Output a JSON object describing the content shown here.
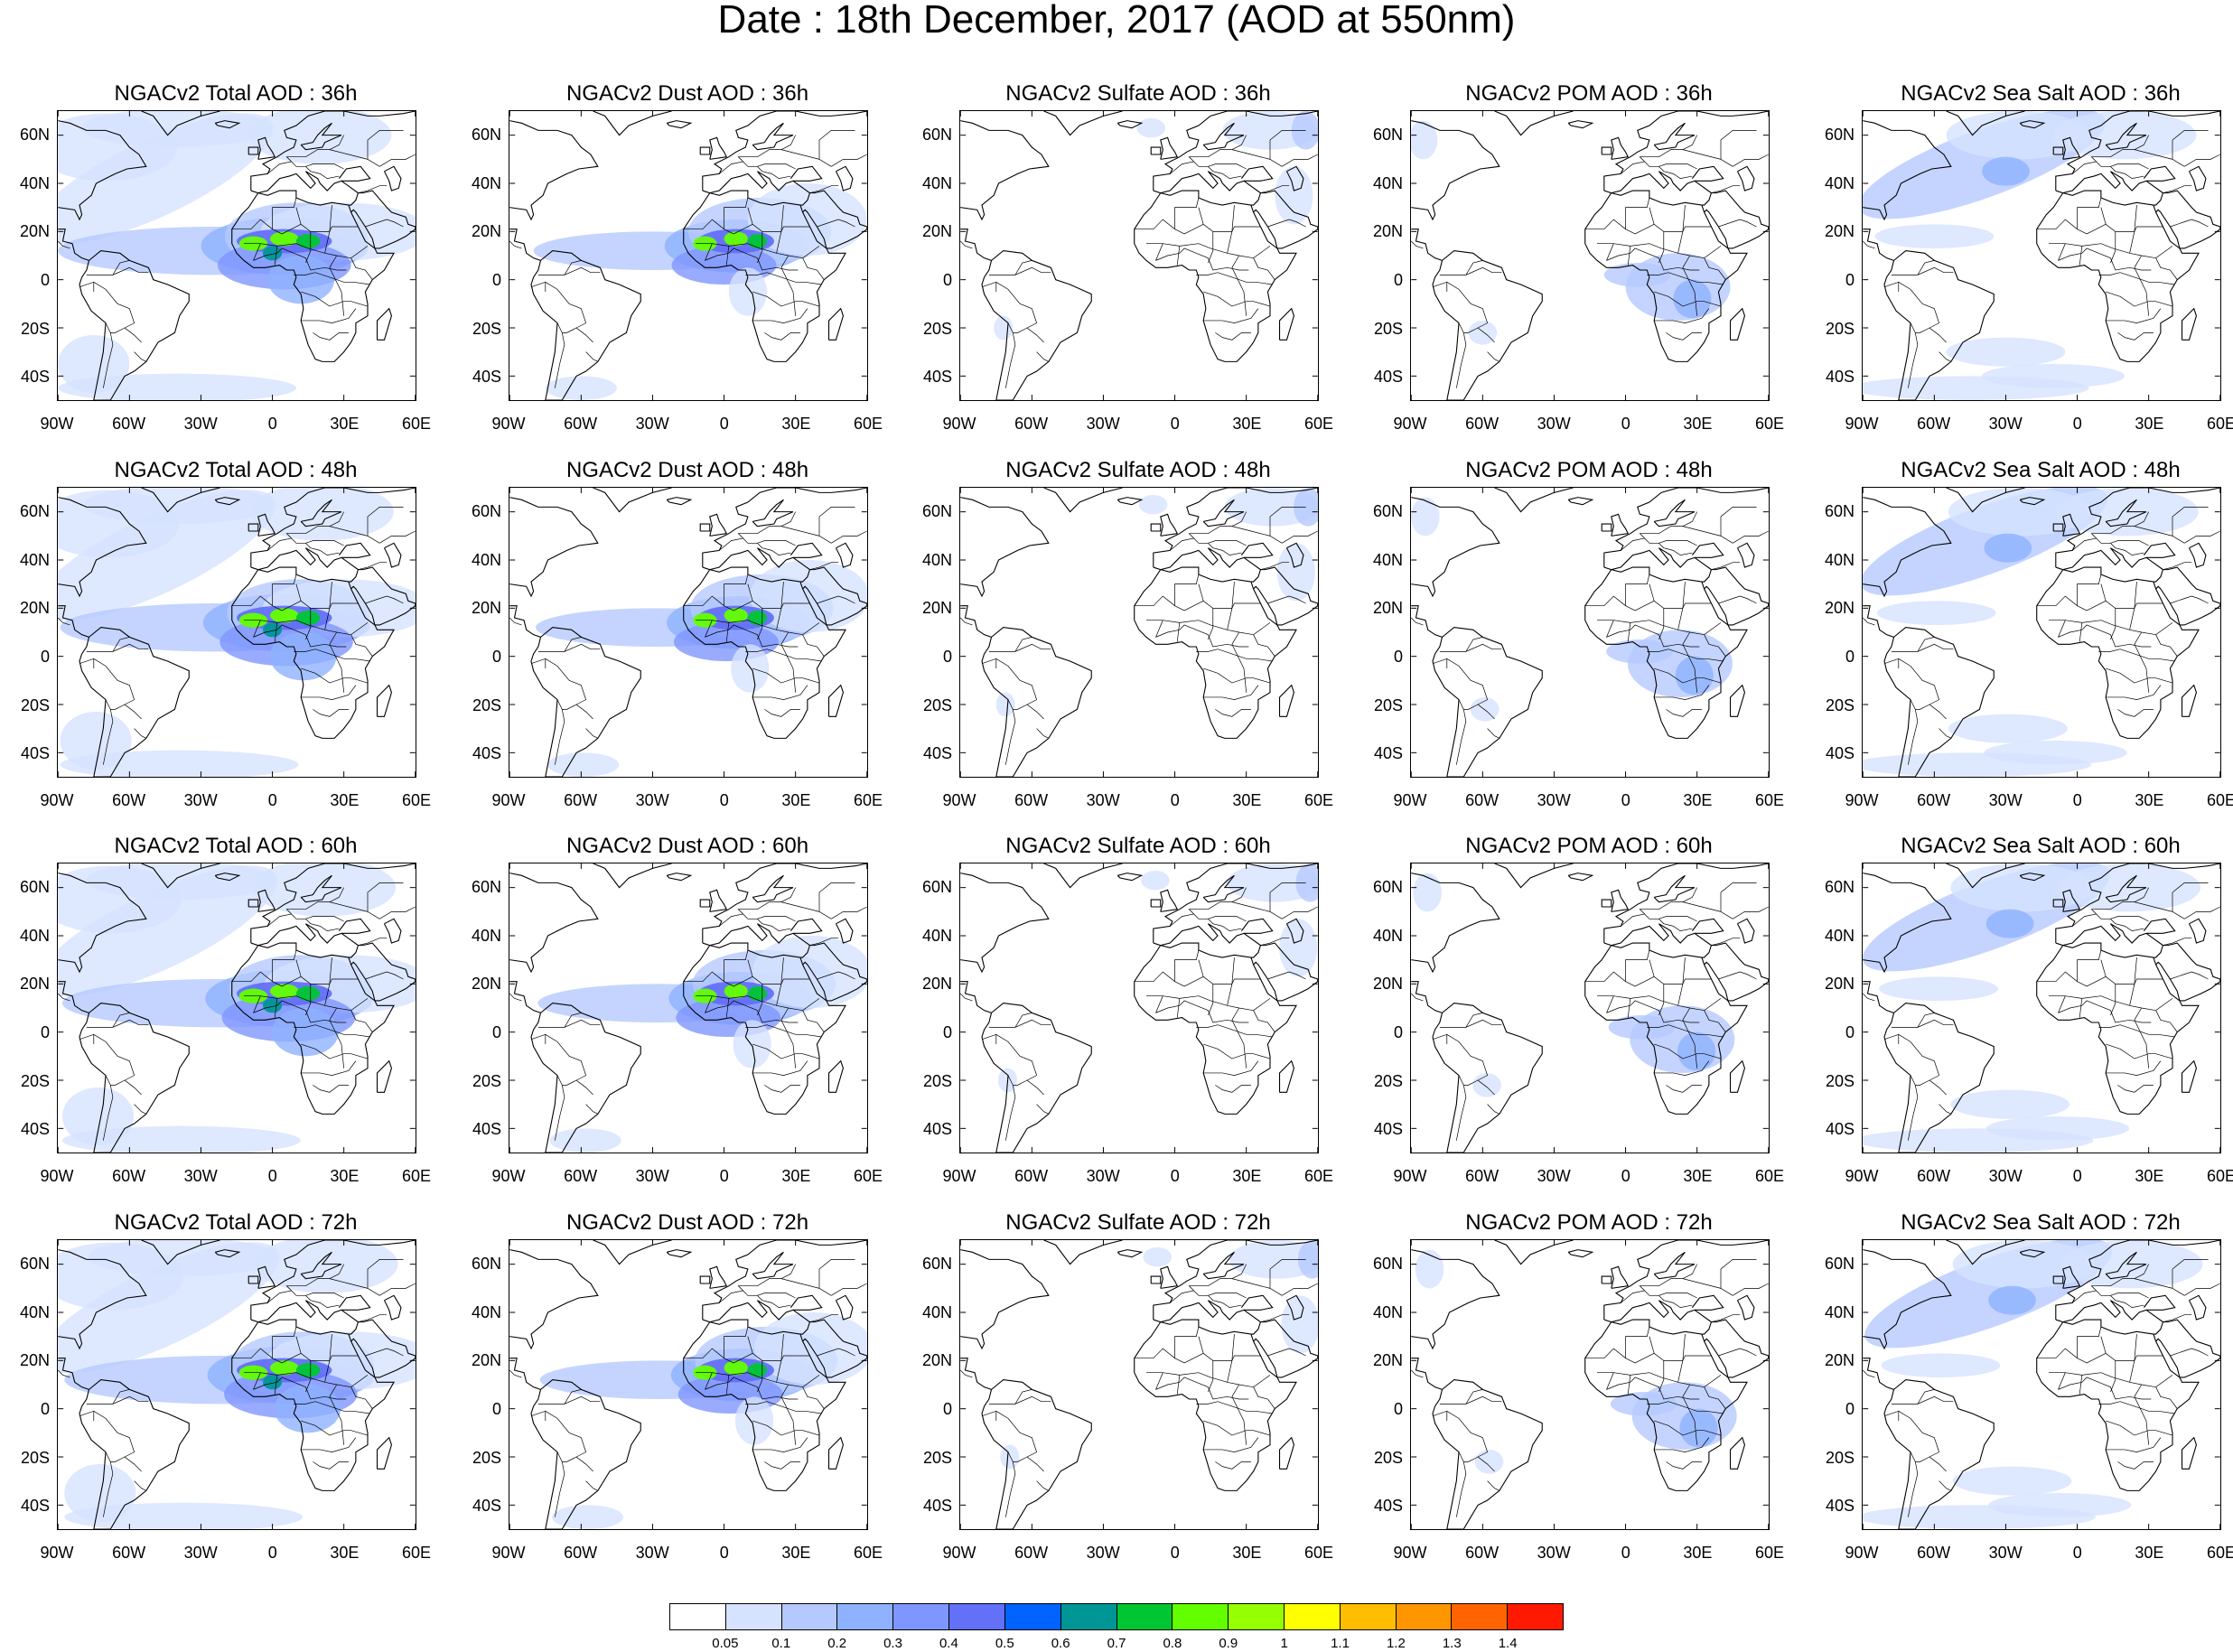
{
  "title": "Date : 18th December, 2017 (AOD at 550nm)",
  "panels": [
    {
      "title": "NGACv2 Total AOD : 36h",
      "species": "total",
      "hour": "36h"
    },
    {
      "title": "NGACv2 Dust AOD : 36h",
      "species": "dust",
      "hour": "36h"
    },
    {
      "title": "NGACv2 Sulfate AOD : 36h",
      "species": "sulfate",
      "hour": "36h"
    },
    {
      "title": "NGACv2 POM AOD : 36h",
      "species": "pom",
      "hour": "36h"
    },
    {
      "title": "NGACv2 Sea Salt AOD : 36h",
      "species": "seasalt",
      "hour": "36h"
    },
    {
      "title": "NGACv2 Total AOD : 48h",
      "species": "total",
      "hour": "48h"
    },
    {
      "title": "NGACv2 Dust AOD : 48h",
      "species": "dust",
      "hour": "48h"
    },
    {
      "title": "NGACv2 Sulfate AOD : 48h",
      "species": "sulfate",
      "hour": "48h"
    },
    {
      "title": "NGACv2 POM AOD : 48h",
      "species": "pom",
      "hour": "48h"
    },
    {
      "title": "NGACv2 Sea Salt AOD : 48h",
      "species": "seasalt",
      "hour": "48h"
    },
    {
      "title": "NGACv2 Total AOD : 60h",
      "species": "total",
      "hour": "60h"
    },
    {
      "title": "NGACv2 Dust AOD : 60h",
      "species": "dust",
      "hour": "60h"
    },
    {
      "title": "NGACv2 Sulfate AOD : 60h",
      "species": "sulfate",
      "hour": "60h"
    },
    {
      "title": "NGACv2 POM AOD : 60h",
      "species": "pom",
      "hour": "60h"
    },
    {
      "title": "NGACv2 Sea Salt AOD : 60h",
      "species": "seasalt",
      "hour": "60h"
    },
    {
      "title": "NGACv2 Total AOD : 72h",
      "species": "total",
      "hour": "72h"
    },
    {
      "title": "NGACv2 Dust AOD : 72h",
      "species": "dust",
      "hour": "72h"
    },
    {
      "title": "NGACv2 Sulfate AOD : 72h",
      "species": "sulfate",
      "hour": "72h"
    },
    {
      "title": "NGACv2 POM AOD : 72h",
      "species": "pom",
      "hour": "72h"
    },
    {
      "title": "NGACv2 Sea Salt  AOD : 72h",
      "species": "seasalt",
      "hour": "72h"
    }
  ],
  "axes": {
    "lon_labels": [
      "90W",
      "60W",
      "30W",
      "0",
      "30E",
      "60E"
    ],
    "lat_labels": [
      "60N",
      "40N",
      "20N",
      "0",
      "20S",
      "40S"
    ],
    "lon_range": [
      -90,
      60
    ],
    "lat_range": [
      -50,
      70
    ]
  },
  "colorbar": {
    "levels": [
      "0.05",
      "0.1",
      "0.2",
      "0.3",
      "0.4",
      "0.5",
      "0.6",
      "0.7",
      "0.8",
      "0.9",
      "1",
      "1.1",
      "1.2",
      "1.3",
      "1.4"
    ],
    "colors": [
      "#ffffff",
      "#d6e2ff",
      "#b5c9ff",
      "#8eb2ff",
      "#7f96ff",
      "#6370f8",
      "#0063ff",
      "#009696",
      "#00c633",
      "#63ff00",
      "#96ff00",
      "#ffff00",
      "#ffbe00",
      "#ff9600",
      "#ff6400",
      "#ff1900"
    ]
  }
}
